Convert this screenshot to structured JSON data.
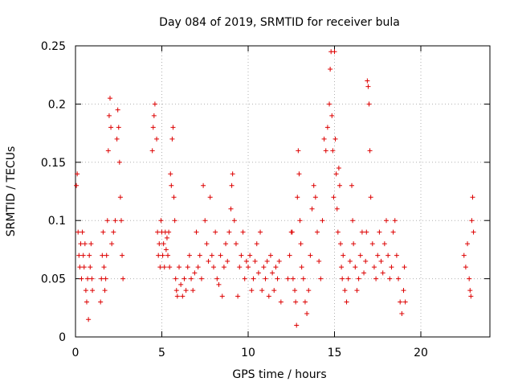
{
  "chart_data": {
    "type": "scatter",
    "title": "Day 084 of 2019, SRMTID for receiver bula",
    "xlabel": "GPS time / hours",
    "ylabel": "SRMTID / TECUs",
    "xlim": [
      0,
      24
    ],
    "ylim": [
      0,
      0.25
    ],
    "x_ticks": [
      0,
      5,
      10,
      15,
      20
    ],
    "x_tick_labels": [
      "0",
      "5",
      "10",
      "15",
      "20"
    ],
    "y_ticks": [
      0,
      0.05,
      0.1,
      0.15,
      0.2,
      0.25
    ],
    "y_tick_labels": [
      "0",
      "0.05",
      "0.1",
      "0.15",
      "0.2",
      "0.25"
    ],
    "grid": true,
    "legend": "none",
    "marker": "plus",
    "colors": {
      "series": "#dd0000",
      "grid": "#b0b0b0",
      "axis": "#000000"
    },
    "series": [
      {
        "name": "SRMTID",
        "points": [
          [
            0.05,
            0.13
          ],
          [
            0.1,
            0.14
          ],
          [
            0.15,
            0.09
          ],
          [
            0.2,
            0.07
          ],
          [
            0.25,
            0.06
          ],
          [
            0.3,
            0.08
          ],
          [
            0.35,
            0.05
          ],
          [
            0.4,
            0.09
          ],
          [
            0.45,
            0.07
          ],
          [
            0.5,
            0.06
          ],
          [
            0.55,
            0.08
          ],
          [
            0.6,
            0.04
          ],
          [
            0.65,
            0.03
          ],
          [
            0.7,
            0.05
          ],
          [
            0.75,
            0.015
          ],
          [
            0.8,
            0.07
          ],
          [
            0.85,
            0.06
          ],
          [
            0.9,
            0.08
          ],
          [
            0.95,
            0.05
          ],
          [
            0.98,
            0.04
          ],
          [
            1.45,
            0.03
          ],
          [
            1.5,
            0.05
          ],
          [
            1.55,
            0.07
          ],
          [
            1.6,
            0.09
          ],
          [
            1.65,
            0.06
          ],
          [
            1.7,
            0.04
          ],
          [
            1.75,
            0.05
          ],
          [
            1.8,
            0.07
          ],
          [
            1.85,
            0.1
          ],
          [
            1.9,
            0.16
          ],
          [
            1.95,
            0.19
          ],
          [
            2.0,
            0.205
          ],
          [
            2.05,
            0.18
          ],
          [
            2.1,
            0.08
          ],
          [
            2.2,
            0.09
          ],
          [
            2.3,
            0.1
          ],
          [
            2.4,
            0.17
          ],
          [
            2.45,
            0.195
          ],
          [
            2.5,
            0.18
          ],
          [
            2.55,
            0.15
          ],
          [
            2.6,
            0.12
          ],
          [
            2.65,
            0.1
          ],
          [
            2.7,
            0.07
          ],
          [
            2.75,
            0.05
          ],
          [
            4.45,
            0.16
          ],
          [
            4.5,
            0.18
          ],
          [
            4.55,
            0.19
          ],
          [
            4.6,
            0.2
          ],
          [
            4.7,
            0.17
          ],
          [
            4.75,
            0.09
          ],
          [
            4.8,
            0.07
          ],
          [
            4.85,
            0.08
          ],
          [
            4.9,
            0.06
          ],
          [
            4.95,
            0.1
          ],
          [
            5.0,
            0.09
          ],
          [
            5.05,
            0.07
          ],
          [
            5.1,
            0.08
          ],
          [
            5.15,
            0.06
          ],
          [
            5.2,
            0.09
          ],
          [
            5.25,
            0.075
          ],
          [
            5.3,
            0.085
          ],
          [
            5.35,
            0.07
          ],
          [
            5.4,
            0.09
          ],
          [
            5.45,
            0.06
          ],
          [
            5.5,
            0.14
          ],
          [
            5.55,
            0.13
          ],
          [
            5.6,
            0.17
          ],
          [
            5.65,
            0.18
          ],
          [
            5.7,
            0.12
          ],
          [
            5.75,
            0.1
          ],
          [
            5.8,
            0.05
          ],
          [
            5.85,
            0.04
          ],
          [
            5.9,
            0.035
          ],
          [
            6.0,
            0.06
          ],
          [
            6.1,
            0.045
          ],
          [
            6.2,
            0.035
          ],
          [
            6.3,
            0.05
          ],
          [
            6.4,
            0.04
          ],
          [
            6.5,
            0.06
          ],
          [
            6.6,
            0.07
          ],
          [
            6.7,
            0.05
          ],
          [
            6.8,
            0.04
          ],
          [
            6.9,
            0.055
          ],
          [
            7.0,
            0.09
          ],
          [
            7.1,
            0.06
          ],
          [
            7.2,
            0.07
          ],
          [
            7.3,
            0.05
          ],
          [
            7.4,
            0.13
          ],
          [
            7.5,
            0.1
          ],
          [
            7.6,
            0.08
          ],
          [
            7.7,
            0.065
          ],
          [
            7.8,
            0.12
          ],
          [
            7.9,
            0.07
          ],
          [
            8.0,
            0.06
          ],
          [
            8.1,
            0.09
          ],
          [
            8.2,
            0.05
          ],
          [
            8.3,
            0.045
          ],
          [
            8.4,
            0.07
          ],
          [
            8.5,
            0.035
          ],
          [
            8.6,
            0.06
          ],
          [
            8.7,
            0.08
          ],
          [
            8.8,
            0.065
          ],
          [
            8.9,
            0.09
          ],
          [
            9.0,
            0.11
          ],
          [
            9.05,
            0.13
          ],
          [
            9.1,
            0.14
          ],
          [
            9.2,
            0.1
          ],
          [
            9.3,
            0.08
          ],
          [
            9.4,
            0.035
          ],
          [
            9.5,
            0.06
          ],
          [
            9.6,
            0.07
          ],
          [
            9.7,
            0.09
          ],
          [
            9.8,
            0.05
          ],
          [
            9.9,
            0.065
          ],
          [
            10.0,
            0.06
          ],
          [
            10.1,
            0.07
          ],
          [
            10.2,
            0.04
          ],
          [
            10.3,
            0.05
          ],
          [
            10.4,
            0.065
          ],
          [
            10.5,
            0.08
          ],
          [
            10.6,
            0.055
          ],
          [
            10.7,
            0.09
          ],
          [
            10.8,
            0.04
          ],
          [
            10.9,
            0.06
          ],
          [
            11.0,
            0.05
          ],
          [
            11.1,
            0.065
          ],
          [
            11.2,
            0.035
          ],
          [
            11.3,
            0.07
          ],
          [
            11.4,
            0.055
          ],
          [
            11.5,
            0.04
          ],
          [
            11.6,
            0.06
          ],
          [
            11.7,
            0.05
          ],
          [
            11.8,
            0.065
          ],
          [
            11.9,
            0.03
          ],
          [
            12.3,
            0.05
          ],
          [
            12.4,
            0.07
          ],
          [
            12.5,
            0.09
          ],
          [
            12.55,
            0.09
          ],
          [
            12.6,
            0.05
          ],
          [
            12.7,
            0.04
          ],
          [
            12.75,
            0.03
          ],
          [
            12.8,
            0.01
          ],
          [
            12.85,
            0.12
          ],
          [
            12.9,
            0.16
          ],
          [
            12.95,
            0.14
          ],
          [
            13.0,
            0.1
          ],
          [
            13.05,
            0.08
          ],
          [
            13.1,
            0.06
          ],
          [
            13.2,
            0.05
          ],
          [
            13.3,
            0.03
          ],
          [
            13.4,
            0.02
          ],
          [
            13.5,
            0.04
          ],
          [
            13.6,
            0.07
          ],
          [
            13.7,
            0.11
          ],
          [
            13.8,
            0.13
          ],
          [
            13.9,
            0.12
          ],
          [
            14.0,
            0.09
          ],
          [
            14.1,
            0.065
          ],
          [
            14.2,
            0.05
          ],
          [
            14.3,
            0.1
          ],
          [
            14.4,
            0.17
          ],
          [
            14.5,
            0.16
          ],
          [
            14.6,
            0.18
          ],
          [
            14.7,
            0.2
          ],
          [
            14.75,
            0.23
          ],
          [
            14.8,
            0.245
          ],
          [
            14.85,
            0.19
          ],
          [
            14.9,
            0.16
          ],
          [
            14.95,
            0.12
          ],
          [
            15.0,
            0.245
          ],
          [
            15.05,
            0.17
          ],
          [
            15.1,
            0.14
          ],
          [
            15.15,
            0.11
          ],
          [
            15.2,
            0.09
          ],
          [
            15.25,
            0.145
          ],
          [
            15.3,
            0.13
          ],
          [
            15.35,
            0.08
          ],
          [
            15.4,
            0.06
          ],
          [
            15.45,
            0.05
          ],
          [
            15.5,
            0.07
          ],
          [
            15.6,
            0.04
          ],
          [
            15.7,
            0.03
          ],
          [
            15.8,
            0.05
          ],
          [
            15.9,
            0.065
          ],
          [
            16.0,
            0.13
          ],
          [
            16.05,
            0.1
          ],
          [
            16.1,
            0.08
          ],
          [
            16.2,
            0.06
          ],
          [
            16.3,
            0.04
          ],
          [
            16.4,
            0.05
          ],
          [
            16.5,
            0.07
          ],
          [
            16.6,
            0.09
          ],
          [
            16.7,
            0.055
          ],
          [
            16.8,
            0.065
          ],
          [
            16.85,
            0.09
          ],
          [
            16.9,
            0.22
          ],
          [
            16.95,
            0.215
          ],
          [
            17.0,
            0.2
          ],
          [
            17.05,
            0.16
          ],
          [
            17.1,
            0.12
          ],
          [
            17.2,
            0.08
          ],
          [
            17.3,
            0.06
          ],
          [
            17.4,
            0.05
          ],
          [
            17.5,
            0.07
          ],
          [
            17.6,
            0.09
          ],
          [
            17.7,
            0.065
          ],
          [
            17.8,
            0.055
          ],
          [
            17.9,
            0.08
          ],
          [
            18.0,
            0.1
          ],
          [
            18.1,
            0.07
          ],
          [
            18.2,
            0.05
          ],
          [
            18.3,
            0.06
          ],
          [
            18.4,
            0.09
          ],
          [
            18.5,
            0.1
          ],
          [
            18.6,
            0.07
          ],
          [
            18.7,
            0.05
          ],
          [
            18.8,
            0.03
          ],
          [
            18.9,
            0.02
          ],
          [
            19.0,
            0.04
          ],
          [
            19.05,
            0.06
          ],
          [
            19.1,
            0.03
          ],
          [
            22.5,
            0.07
          ],
          [
            22.6,
            0.06
          ],
          [
            22.7,
            0.08
          ],
          [
            22.8,
            0.05
          ],
          [
            22.85,
            0.04
          ],
          [
            22.9,
            0.035
          ],
          [
            22.95,
            0.1
          ],
          [
            23.0,
            0.12
          ],
          [
            23.05,
            0.09
          ]
        ]
      }
    ]
  }
}
